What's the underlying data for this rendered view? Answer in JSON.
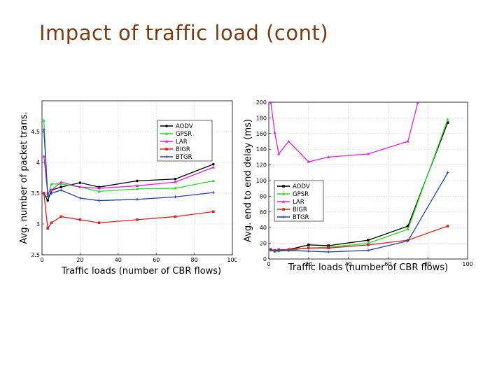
{
  "slide": {
    "title": "Impact of traffic load (cont)"
  },
  "chart_data": [
    {
      "type": "line",
      "xlabel": "Traffic loads (number of CBR flows)",
      "ylabel": "Avg. number of packet trans.",
      "xlim": [
        0,
        100
      ],
      "ylim": [
        2.5,
        5
      ],
      "xticks": [
        0,
        20,
        40,
        60,
        80,
        100
      ],
      "yticks": [
        2.5,
        3,
        3.5,
        4,
        4.5
      ],
      "grid": true,
      "legend_position": "top-right",
      "series": [
        {
          "name": "AODV",
          "color": "#000000",
          "marker": "circle",
          "x": [
            1,
            3,
            5,
            10,
            20,
            30,
            50,
            70,
            90
          ],
          "y": [
            3.5,
            3.38,
            3.55,
            3.6,
            3.67,
            3.6,
            3.7,
            3.73,
            3.97
          ]
        },
        {
          "name": "GPSR",
          "color": "#22dd22",
          "marker": "triangle",
          "x": [
            1,
            3,
            5,
            10,
            20,
            30,
            50,
            70,
            90
          ],
          "y": [
            4.68,
            3.45,
            3.65,
            3.65,
            3.6,
            3.53,
            3.57,
            3.58,
            3.7
          ]
        },
        {
          "name": "LAR",
          "color": "#e020e0",
          "marker": "triangle",
          "x": [
            1,
            3,
            5,
            10,
            20,
            30,
            50,
            70,
            90
          ],
          "y": [
            4.1,
            3.5,
            3.55,
            3.68,
            3.6,
            3.58,
            3.62,
            3.68,
            3.92
          ]
        },
        {
          "name": "BIGR",
          "color": "#e02020",
          "marker": "square",
          "x": [
            1,
            3,
            5,
            10,
            20,
            30,
            50,
            70,
            90
          ],
          "y": [
            3.5,
            2.93,
            3.02,
            3.12,
            3.07,
            3.02,
            3.07,
            3.12,
            3.2
          ]
        },
        {
          "name": "BTGR",
          "color": "#1f3fbf",
          "marker": "plus",
          "x": [
            1,
            3,
            5,
            10,
            20,
            30,
            50,
            70,
            90
          ],
          "y": [
            4.53,
            3.45,
            3.5,
            3.55,
            3.42,
            3.38,
            3.4,
            3.44,
            3.51
          ]
        }
      ]
    },
    {
      "type": "line",
      "xlabel": "Traffic loads (number of CBR flows)",
      "ylabel": "Avg. end to end delay (ms)",
      "xlim": [
        0,
        100
      ],
      "ylim": [
        0,
        200
      ],
      "xticks": [
        0,
        20,
        40,
        60,
        80,
        100
      ],
      "yticks": [
        0,
        20,
        40,
        60,
        80,
        100,
        120,
        140,
        160,
        180,
        200
      ],
      "grid": true,
      "legend_position": "center-left",
      "series": [
        {
          "name": "AODV",
          "color": "#000000",
          "marker": "square",
          "x": [
            1,
            3,
            5,
            10,
            20,
            30,
            50,
            70,
            90
          ],
          "y": [
            12,
            10,
            11,
            12,
            18,
            17,
            24,
            42,
            174
          ]
        },
        {
          "name": "GPSR",
          "color": "#22dd22",
          "marker": "triangle",
          "x": [
            1,
            3,
            5,
            10,
            20,
            30,
            50,
            70,
            90
          ],
          "y": [
            11,
            10,
            10,
            11,
            14,
            15,
            20,
            38,
            178
          ]
        },
        {
          "name": "LAR",
          "color": "#e020e0",
          "marker": "triangle",
          "x": [
            1,
            3,
            5,
            10,
            20,
            30,
            50,
            70,
            75
          ],
          "y": [
            200,
            161,
            134,
            150,
            124,
            130,
            134,
            150,
            200
          ]
        },
        {
          "name": "BIGR",
          "color": "#e02020",
          "marker": "square",
          "x": [
            1,
            3,
            5,
            10,
            20,
            30,
            50,
            70,
            90
          ],
          "y": [
            12,
            11,
            12,
            12,
            14,
            14,
            18,
            24,
            42
          ]
        },
        {
          "name": "BTGR",
          "color": "#1f3fbf",
          "marker": "plus",
          "x": [
            1,
            3,
            5,
            10,
            20,
            30,
            50,
            70,
            90
          ],
          "y": [
            12,
            10,
            11,
            11,
            10,
            9,
            11,
            23,
            110
          ]
        }
      ]
    }
  ]
}
